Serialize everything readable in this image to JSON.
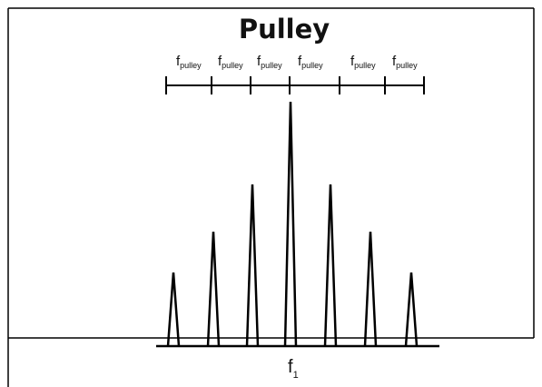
{
  "title": "Pulley",
  "spacing_labels": [
    {
      "main": "f",
      "sub": "pulley"
    },
    {
      "main": "f",
      "sub": "pulley"
    },
    {
      "main": "f",
      "sub": "pulley"
    },
    {
      "main": "f",
      "sub": "pulley"
    },
    {
      "main": "f",
      "sub": "pulley"
    },
    {
      "main": "f",
      "sub": "pulley"
    }
  ],
  "center_label": {
    "main": "f",
    "sub": "1"
  }
}
